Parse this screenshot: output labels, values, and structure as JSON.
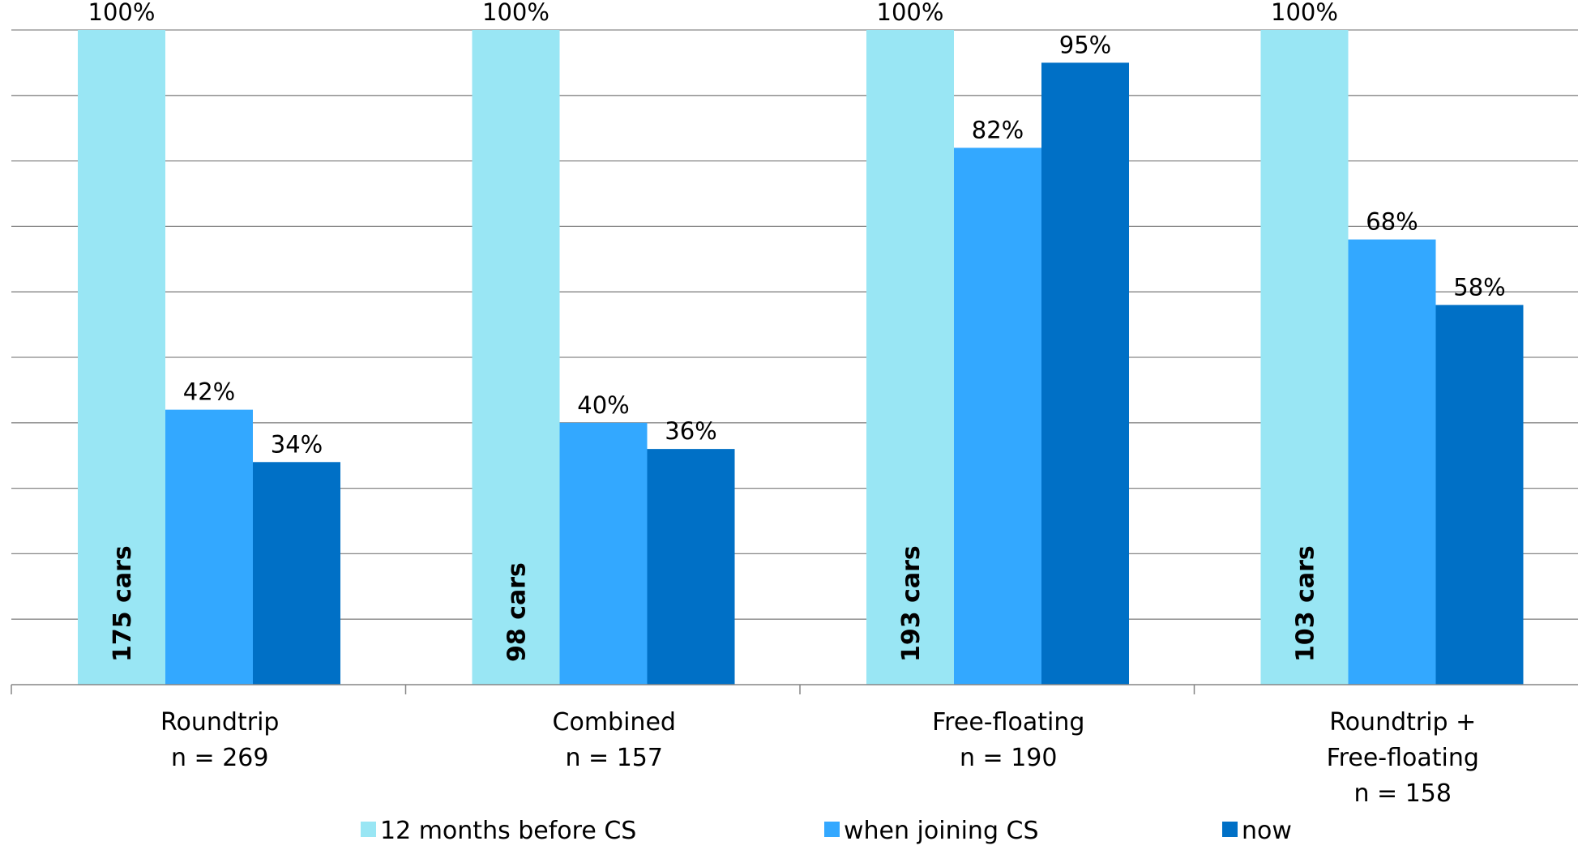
{
  "chart_data": {
    "type": "bar",
    "categories": [
      [
        "Roundtrip",
        "n = 269"
      ],
      [
        "Combined",
        "n = 157"
      ],
      [
        "Free-floating",
        "n = 190"
      ],
      [
        "Roundtrip +",
        "Free-floating",
        "n = 158"
      ]
    ],
    "series": [
      {
        "name": "12 months before CS",
        "values": [
          100,
          100,
          100,
          100
        ],
        "color": "#99E6F4"
      },
      {
        "name": "when joining CS",
        "values": [
          42,
          40,
          82,
          68
        ],
        "color": "#33A8FF"
      },
      {
        "name": "now",
        "values": [
          34,
          36,
          95,
          58
        ],
        "color": "#0070C6"
      }
    ],
    "data_labels": [
      [
        "100%",
        "42%",
        "34%"
      ],
      [
        "100%",
        "40%",
        "36%"
      ],
      [
        "100%",
        "82%",
        "95%"
      ],
      [
        "100%",
        "68%",
        "58%"
      ]
    ],
    "bar_annotations": [
      "175 cars",
      "98 cars",
      "193 cars",
      "103 cars"
    ],
    "ylim": [
      0,
      100
    ],
    "grid": true,
    "legend_position": "bottom",
    "title": "",
    "xlabel": "",
    "ylabel": ""
  }
}
